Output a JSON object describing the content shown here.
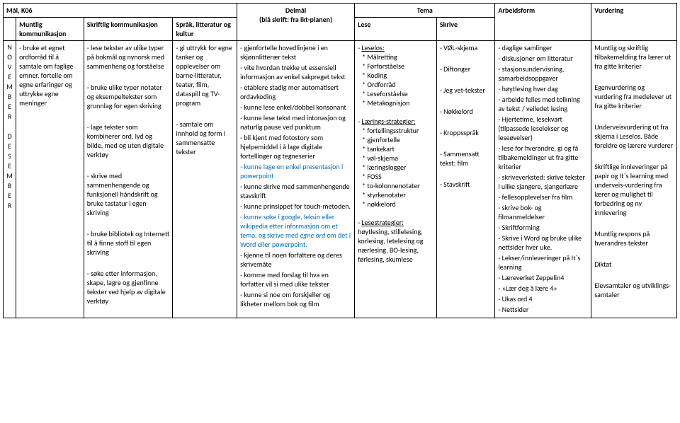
{
  "headers": {
    "main": "Mål, K06",
    "muntlig": "Muntlig kommunikasjon",
    "skriftlig": "Skriftlig kommunikasjon",
    "sprak": "Språk, litteratur og kultur",
    "delmal_title": "Delmål",
    "delmal_sub": "(blå skrift: fra ikt-planen)",
    "tema": "Tema",
    "lese": "Lese",
    "skrive": "Skrive",
    "arbeidsform": "Arbeidsform",
    "vurdering": "Vurdering"
  },
  "months": {
    "nov": "N\nO\nV\nE\nM\nB\nE\nR",
    "des": "D\nE\nS\nE\nM\nB\nE\nR"
  },
  "muntlig_text": "- bruke et egnet ordforråd til å samtale om faglige emner, fortelle om egne erfaringer og uttrykke egne meninger",
  "skriftlig_items": [
    "- lese tekster av ulike typer på bokmål og nynorsk med sammenheng og forståelse",
    "",
    "- bruke ulike typer notater og eksempeltekster som grunnlag for egen skriving",
    "",
    "- lage tekster som kombinerer ord, lyd og bilde, med og uten digitale verktøy",
    "",
    "- skrive med sammenhengende og funksjonell håndskrift og bruke tastatur i egen skriving",
    "",
    "- bruke bibliotek og Internett til å finne stoff til egen skriving",
    "",
    "- søke etter informasjon, skape, lagre og gjenfinne tekster ved hjelp av digitale verktøy"
  ],
  "sprak_items": [
    "- gi uttrykk for egne tanker og opplevelser om barne-litteratur, teater, film, dataspill og TV-program",
    "",
    "- samtale om innhold og form i sammensatte tekster"
  ],
  "delmal": {
    "items": [
      {
        "t": "- gjenfortelle hovedlinjene i en skjønnlitterær tekst",
        "blue": false
      },
      {
        "t": "- vite hvordan trekke ut essensiell informasjon av enkel sakpreget tekst",
        "blue": false
      },
      {
        "t": "- etablere stadig mer automatisert ordavkoding",
        "blue": false
      },
      {
        "t": "- kunne lese enkel/dobbel konsonant",
        "blue": false
      },
      {
        "t": "- kunne lese tekst med intonasjon og naturlig pause ved punktum",
        "blue": false
      },
      {
        "t": "- bli kjent med fotostory som hjelpemiddel i å lage digitale fortellinger og tegneserier",
        "blue": false
      },
      {
        "t": "- kunne lage en enkel presentasjon i powerpoint",
        "blue": true
      },
      {
        "t": "- kunne skrive med sammenhengende stavskrift",
        "blue": false
      },
      {
        "t": "- kunne prinsippet for touch-metoden.",
        "blue": false
      }
    ],
    "mixed_line": {
      "pre": "",
      "blue_a": "- kunne søke i google, leksin eller wikipedia etter informasjon om et tema, og skrive med ",
      "ital": "egne ord",
      "blue_b": " om det i Word eller powerpoint."
    },
    "items2": [
      {
        "t": "- kjenne til noen forfattere og deres skrivemåte",
        "blue": false
      },
      {
        "t": "- komme med forslag til hva en forfatter vil si med ulike tekster",
        "blue": false
      },
      {
        "t": "- kunne si noe om forskjeller og likheter mellom bok og film",
        "blue": false
      }
    ]
  },
  "lese": {
    "leselos_label": "- Leselos:",
    "leselos_items": [
      "* Målretting",
      "* Førforståelse",
      "* Koding",
      "* Ordforråd",
      "* Leseforståelse",
      "* Metakognisjon"
    ],
    "laering_label": "- Lærings-strategier:",
    "laering_items": [
      "* fortellingsstruktur",
      "* gjenfortelle",
      "* tankekart",
      "* vøl-skjema",
      "* læringslogger",
      "* FOSS",
      "* to-kolonnenotater",
      "* styrkenotater",
      "* nøkkelord"
    ],
    "lesestrat_label": "- Lesestrategier:",
    "lesestrat_text": "høytlesing, stillelesing, korlesing, letelesing og nærlesing, BO-lesing, førlesing, skumlese"
  },
  "skrive_items": [
    "- VØL-skjema",
    "",
    "- Diftonger",
    "",
    "- Jeg vet-tekster",
    "",
    "- Nøkkelord",
    "",
    "- Kroppsspråk",
    "",
    "- Sammensatt tekst: film",
    "",
    "- Stavskrift"
  ],
  "arbeidsform_items": [
    "- daglige samlinger",
    "- diskusjoner om litteratur",
    "- stasjonsundervisning, samarbeidsoppgaver",
    "- høytlesing hver dag",
    "- arbeide felles med tolkning av tekst / veiledet lesing",
    "- Hjertetime, lesekvart (tilpassede leselekser og leseøvelser)",
    "- lese for hverandre, gi og få tilbakemeldinger ut fra gitte kriterier",
    "- skriveverksted: skrive tekster i ulike sjangere, sjangerlære",
    "- fellesopplevelser fra film",
    "- skrive bok- og filmanmeldelser",
    "- Skriftforming",
    "- Skrive i Word og bruke ulike nettsider hver uke.",
    "- Lekser/innleveringer på It`s learning",
    "- Læreverket Zeppelin4",
    "- «Lær deg å lære 4»",
    "- Ukas ord 4",
    "- Nettsider"
  ],
  "vurdering_items": [
    "Muntlig og skriftlig tilbakemelding fra lærer ut fra gitte kriterier",
    "",
    "Egenvurdering og vurdering fra medelever ut fra gitte kriterier",
    "",
    "Underveisvurdering ut fra skjema i Leselos. Både foreldre og lærere vurderer",
    "",
    "Skriftlige innleveringer på papir og It`s learning med underveis-vurdering fra lærer og mulighet til forbedring og ny innlevering",
    "",
    "Muntlig respons på hverandres tekster",
    "",
    "Diktat",
    "",
    "Elevsamtaler og utviklings-samtaler"
  ]
}
